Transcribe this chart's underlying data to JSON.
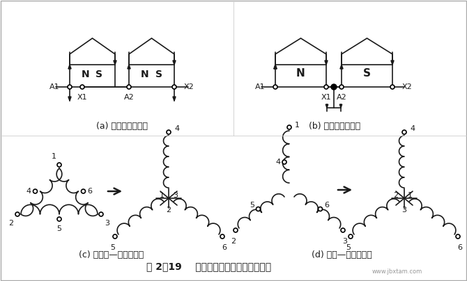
{
  "title": "图 2－19    双速电动机改变极对数的原理",
  "subtitle_a": "(a) 四极绕组展开图",
  "subtitle_b": "(b) 二极绕组展开图",
  "subtitle_c": "(c) 三角形—双星形转换",
  "subtitle_d": "(d) 星形—双星形转换",
  "bg_color": "#ffffff",
  "lc": "#1a1a1a",
  "fig_width": 6.7,
  "fig_height": 4.04,
  "dpi": 100
}
